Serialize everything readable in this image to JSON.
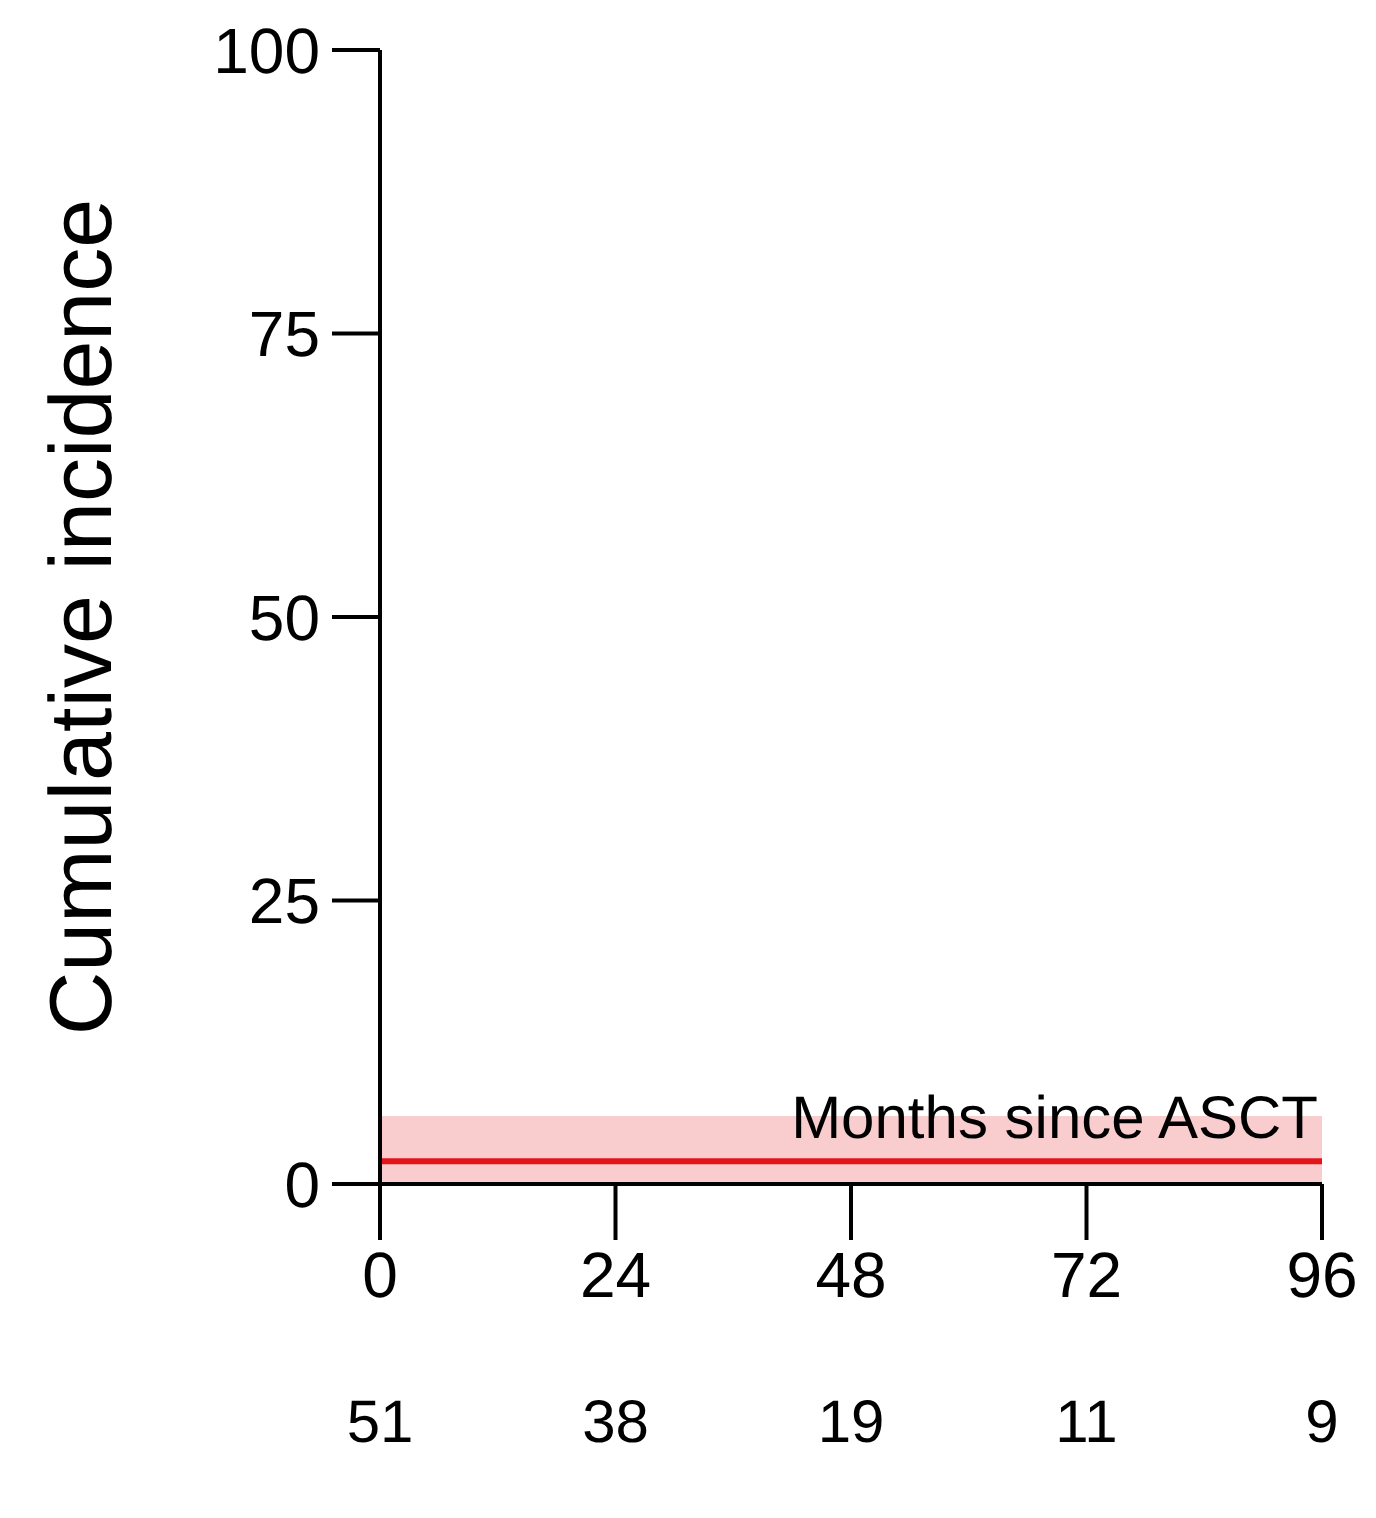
{
  "chart_data": {
    "type": "step",
    "xlabel": "Months since ASCT",
    "ylabel": "Cumulative incidence",
    "x": [
      0,
      96
    ],
    "series": [
      {
        "color": "#e3151b",
        "values": [
          2,
          2
        ],
        "lower": [
          0,
          0
        ],
        "upper": [
          6,
          6
        ]
      }
    ],
    "xlim": [
      0,
      96
    ],
    "xticks": [
      0,
      24,
      48,
      72,
      96
    ],
    "ylim": [
      0,
      100
    ],
    "yticks": [
      0,
      25,
      50,
      75,
      100
    ],
    "marker": "none",
    "line_style": "solid",
    "annotations": [
      "51",
      "38",
      "19",
      "11",
      "9"
    ]
  }
}
